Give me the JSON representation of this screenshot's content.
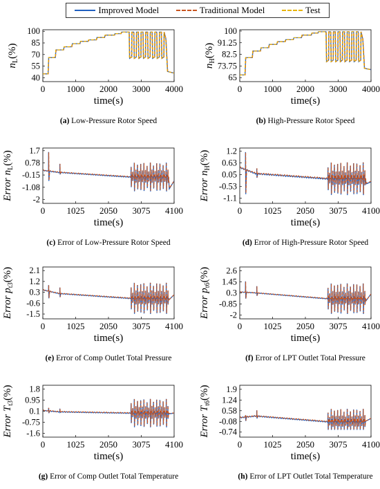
{
  "legend": {
    "items": [
      {
        "label": "Improved Model",
        "color": "#1f5fbf",
        "style": "solid"
      },
      {
        "label": "Traditional Model",
        "color": "#c8541e",
        "style": "dashed"
      },
      {
        "label": "Test",
        "color": "#e8b400",
        "style": "dashed"
      }
    ]
  },
  "captions": {
    "a": {
      "tag": "(a)",
      "text": "Low-Pressure Rotor Speed"
    },
    "b": {
      "tag": "(b)",
      "text": "High-Pressure Rotor Speed"
    },
    "c": {
      "tag": "(c)",
      "text": "Error of Low-Pressure Rotor Speed"
    },
    "d": {
      "tag": "(d)",
      "text": "Error of High-Pressure Rotor Speed"
    },
    "e": {
      "tag": "(e)",
      "text": "Error of Comp Outlet Total Pressure"
    },
    "f": {
      "tag": "(f)",
      "text": "Error of LPT Outlet Total Pressure"
    },
    "g": {
      "tag": "(g)",
      "text": "Error of Comp Outlet Total Temperature"
    },
    "h": {
      "tag": "(h)",
      "text": "Error of LPT Outlet Total Temperature"
    }
  },
  "chart_data": [
    {
      "id": "a",
      "type": "line",
      "kind": "speed",
      "ylabel_pre": "",
      "ylabel_var": "n",
      "ylabel_sub": "L",
      "ylabel_unit": "(%)",
      "xlabel": "time(s)",
      "xlim": [
        0,
        4000
      ],
      "ylim": [
        35,
        102
      ],
      "xticks": [
        "0",
        "1000",
        "2000",
        "3000",
        "4000"
      ],
      "xtick_values": [
        0,
        1000,
        2000,
        3000,
        4000
      ],
      "yticks": [
        "100",
        "85",
        "70",
        "55",
        "40"
      ],
      "ytick_values": [
        100,
        85,
        70,
        55,
        40
      ],
      "series_names": [
        "Improved Model",
        "Traditional Model",
        "Test"
      ],
      "steps": [
        [
          0,
          45
        ],
        [
          180,
          66
        ],
        [
          400,
          76
        ],
        [
          650,
          80
        ],
        [
          900,
          84
        ],
        [
          1150,
          87
        ],
        [
          1400,
          89
        ],
        [
          1650,
          92
        ],
        [
          1900,
          95
        ],
        [
          2200,
          97
        ],
        [
          2400,
          99
        ]
      ],
      "transient": {
        "start": 2630,
        "end": 3750,
        "cycles": 8,
        "low": 65,
        "high": 99
      },
      "tail": [
        [
          3750,
          90
        ],
        [
          3800,
          48
        ],
        [
          4000,
          46
        ]
      ]
    },
    {
      "id": "b",
      "type": "line",
      "kind": "speed",
      "ylabel_pre": "",
      "ylabel_var": "n",
      "ylabel_sub": "H",
      "ylabel_unit": "(%)",
      "xlabel": "time(s)",
      "xlim": [
        0,
        4000
      ],
      "ylim": [
        62,
        101
      ],
      "xticks": [
        "0",
        "1000",
        "2000",
        "3000",
        "4000"
      ],
      "xtick_values": [
        0,
        1000,
        2000,
        3000,
        4000
      ],
      "yticks": [
        "100",
        "91.25",
        "82.5",
        "73.75",
        "65"
      ],
      "ytick_values": [
        100,
        91.25,
        82.5,
        73.75,
        65
      ],
      "series_names": [
        "Improved Model",
        "Traditional Model",
        "Test"
      ],
      "steps": [
        [
          0,
          67
        ],
        [
          180,
          80
        ],
        [
          400,
          85
        ],
        [
          650,
          87.5
        ],
        [
          900,
          90
        ],
        [
          1150,
          92
        ],
        [
          1400,
          93.5
        ],
        [
          1650,
          95
        ],
        [
          1900,
          97
        ],
        [
          2200,
          98.5
        ],
        [
          2400,
          99.5
        ]
      ],
      "transient": {
        "start": 2630,
        "end": 3750,
        "cycles": 8,
        "low": 77,
        "high": 99.5
      },
      "tail": [
        [
          3750,
          94
        ],
        [
          3800,
          72
        ],
        [
          4000,
          71
        ]
      ]
    },
    {
      "id": "c",
      "type": "line",
      "kind": "error",
      "ylabel_pre": "Error ",
      "ylabel_var": "n",
      "ylabel_sub": "L",
      "ylabel_unit": "(%)",
      "xlabel": "time(s)",
      "xlim": [
        0,
        4100
      ],
      "ylim": [
        -2.3,
        1.9
      ],
      "xticks": [
        "0",
        "1025",
        "2050",
        "3075",
        "4100"
      ],
      "xtick_values": [
        0,
        1025,
        2050,
        3075,
        4100
      ],
      "yticks": [
        "1.7",
        "0.78",
        "-0.15",
        "-1.08",
        "-2"
      ],
      "ytick_values": [
        1.7,
        0.78,
        -0.15,
        -1.08,
        -2
      ],
      "series_names": [
        "Improved Model",
        "Traditional Model"
      ],
      "base": [
        [
          0,
          0.2
        ],
        [
          500,
          0.05
        ],
        [
          2700,
          -0.3
        ]
      ],
      "spikes_early": [
        [
          180,
          1.6,
          -0.6
        ],
        [
          530,
          0.7,
          -0.1
        ]
      ],
      "osc": {
        "start": 2750,
        "end": 3950,
        "cycles": 12,
        "amp": 1.1,
        "min": -2.0
      },
      "tail": [
        [
          3950,
          -1.2
        ],
        [
          4100,
          -0.6
        ]
      ]
    },
    {
      "id": "d",
      "type": "line",
      "kind": "error",
      "ylabel_pre": "Error ",
      "ylabel_var": "n",
      "ylabel_sub": "H",
      "ylabel_unit": "(%)",
      "xlabel": "time(s)",
      "xlim": [
        0,
        4100
      ],
      "ylim": [
        -1.35,
        1.35
      ],
      "xticks": [
        "0",
        "1025",
        "2050",
        "3075",
        "4100"
      ],
      "xtick_values": [
        0,
        1025,
        2050,
        3075,
        4100
      ],
      "yticks": [
        "1.2",
        "0.63",
        "0.05",
        "-0.53",
        "-1.1"
      ],
      "ytick_values": [
        1.2,
        0.63,
        0.05,
        -0.53,
        -1.1
      ],
      "series_names": [
        "Improved Model",
        "Traditional Model"
      ],
      "base": [
        [
          0,
          0.4
        ],
        [
          500,
          0.1
        ],
        [
          2700,
          -0.15
        ]
      ],
      "spikes_early": [
        [
          180,
          1.15,
          -0.9
        ],
        [
          530,
          0.35,
          -0.1
        ]
      ],
      "osc": {
        "start": 2750,
        "end": 3950,
        "cycles": 12,
        "amp": 0.8,
        "min": -1.1
      },
      "tail": [
        [
          3950,
          -0.4
        ],
        [
          4100,
          -0.3
        ]
      ]
    },
    {
      "id": "e",
      "type": "line",
      "kind": "error",
      "ylabel_pre": "Error ",
      "ylabel_var": "p",
      "ylabel_sub": "t3",
      "ylabel_unit": "(%)",
      "xlabel": "time(s)",
      "xlim": [
        0,
        4100
      ],
      "ylim": [
        -1.9,
        2.4
      ],
      "xticks": [
        "0",
        "1025",
        "2050",
        "3075",
        "4100"
      ],
      "xtick_values": [
        0,
        1025,
        2050,
        3075,
        4100
      ],
      "yticks": [
        "2.1",
        "1.2",
        "0.3",
        "-0.6",
        "-1.5"
      ],
      "ytick_values": [
        2.1,
        1.2,
        0.3,
        -0.6,
        -1.5
      ],
      "series_names": [
        "Improved Model",
        "Traditional Model"
      ],
      "base": [
        [
          0,
          0.5
        ],
        [
          500,
          0.2
        ],
        [
          2700,
          -0.2
        ]
      ],
      "spikes_early": [
        [
          180,
          0.9,
          -0.2
        ],
        [
          530,
          0.7,
          -0.1
        ]
      ],
      "osc": {
        "start": 2750,
        "end": 3950,
        "cycles": 12,
        "amp": 1.3,
        "min": -1.5
      },
      "tail": [
        [
          3950,
          -0.3
        ],
        [
          4100,
          0.1
        ]
      ]
    },
    {
      "id": "f",
      "type": "line",
      "kind": "error",
      "ylabel_pre": "Error ",
      "ylabel_var": "p",
      "ylabel_sub": "t6",
      "ylabel_unit": "(%)",
      "xlabel": "time(s)",
      "xlim": [
        0,
        4100
      ],
      "ylim": [
        -2.4,
        3.0
      ],
      "xticks": [
        "0",
        "1025",
        "2050",
        "3075",
        "4100"
      ],
      "xtick_values": [
        0,
        1025,
        2050,
        3075,
        4100
      ],
      "yticks": [
        "2.6",
        "1.45",
        "0.3",
        "-0.85",
        "-2"
      ],
      "ytick_values": [
        2.6,
        1.45,
        0.3,
        -0.85,
        -2
      ],
      "series_names": [
        "Improved Model",
        "Traditional Model"
      ],
      "base": [
        [
          0,
          0.4
        ],
        [
          500,
          0.3
        ],
        [
          2700,
          -0.3
        ]
      ],
      "spikes_early": [
        [
          180,
          1.5,
          -0.3
        ],
        [
          530,
          1.0,
          0.0
        ]
      ],
      "osc": {
        "start": 2750,
        "end": 3950,
        "cycles": 12,
        "amp": 1.6,
        "min": -2.0
      },
      "tail": [
        [
          3950,
          -0.5
        ],
        [
          4100,
          0.2
        ]
      ]
    },
    {
      "id": "g",
      "type": "line",
      "kind": "error",
      "ylabel_pre": "Error ",
      "ylabel_var": "T",
      "ylabel_sub": "t3",
      "ylabel_unit": "(%)",
      "xlabel": "time(s)",
      "xlim": [
        0,
        4100
      ],
      "ylim": [
        -1.9,
        2.1
      ],
      "xticks": [
        "0",
        "1025",
        "2050",
        "3075",
        "4100"
      ],
      "xtick_values": [
        0,
        1025,
        2050,
        3075,
        4100
      ],
      "yticks": [
        "1.8",
        "0.95",
        "0.1",
        "-0.75",
        "-1.6"
      ],
      "ytick_values": [
        1.8,
        0.95,
        0.1,
        -0.75,
        -1.6
      ],
      "series_names": [
        "Improved Model",
        "Traditional Model"
      ],
      "base": [
        [
          0,
          0.15
        ],
        [
          500,
          0.05
        ],
        [
          2700,
          -0.05
        ]
      ],
      "spikes_early": [
        [
          180,
          0.35,
          -0.05
        ],
        [
          530,
          0.3,
          0.0
        ]
      ],
      "osc": {
        "start": 2750,
        "end": 3950,
        "cycles": 12,
        "amp": 1.1,
        "min": -1.4
      },
      "tail": [
        [
          3950,
          -0.1
        ],
        [
          4100,
          -0.05
        ]
      ]
    },
    {
      "id": "h",
      "type": "line",
      "kind": "error",
      "ylabel_pre": "Error ",
      "ylabel_var": "T",
      "ylabel_sub": "t6",
      "ylabel_unit": "(%)",
      "xlabel": "time(s)",
      "xlim": [
        0,
        4100
      ],
      "ylim": [
        -1.05,
        2.15
      ],
      "xticks": [
        "0",
        "1025",
        "2050",
        "3075",
        "4100"
      ],
      "xtick_values": [
        0,
        1025,
        2050,
        3075,
        4100
      ],
      "yticks": [
        "1.9",
        "1.24",
        "0.58",
        "-0.08",
        "-0.74"
      ],
      "ytick_values": [
        1.9,
        1.24,
        0.58,
        -0.08,
        -0.74
      ],
      "series_names": [
        "Improved Model",
        "Traditional Model"
      ],
      "base": [
        [
          0,
          0.15
        ],
        [
          500,
          0.25
        ],
        [
          2700,
          -0.1
        ]
      ],
      "spikes_early": [
        [
          180,
          0.3,
          -0.05
        ],
        [
          530,
          0.6,
          0.1
        ]
      ],
      "osc": {
        "start": 2750,
        "end": 3950,
        "cycles": 12,
        "amp": 0.8,
        "min": -0.6
      },
      "tail": [
        [
          3950,
          -0.05
        ],
        [
          4100,
          0.1
        ]
      ]
    }
  ]
}
